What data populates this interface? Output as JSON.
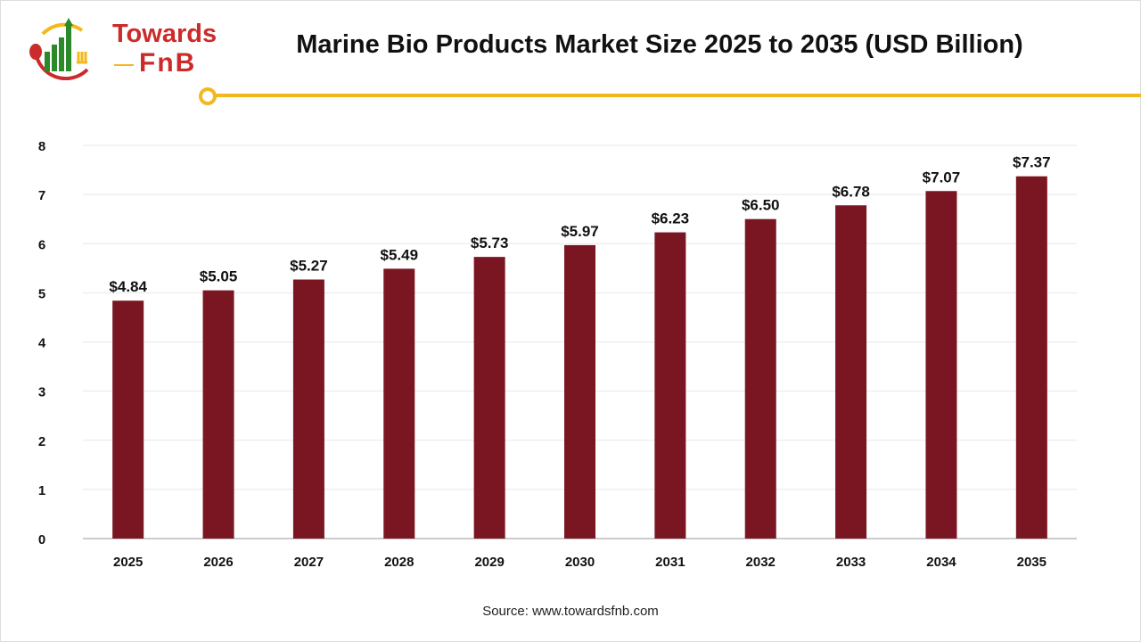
{
  "logo": {
    "line1": "Towards",
    "line2": "FnB"
  },
  "title": "Marine Bio Products Market Size 2025 to 2035 (USD Billion)",
  "source": "Source: www.towardsfnb.com",
  "colors": {
    "bar": "#7a1621",
    "accent": "#f2b81d",
    "brand": "#cc2b2b"
  },
  "chart_data": {
    "type": "bar",
    "title": "Marine Bio Products Market Size 2025 to 2035 (USD Billion)",
    "categories": [
      "2025",
      "2026",
      "2027",
      "2028",
      "2029",
      "2030",
      "2031",
      "2032",
      "2033",
      "2034",
      "2035"
    ],
    "values": [
      4.84,
      5.05,
      5.27,
      5.49,
      5.73,
      5.97,
      6.23,
      6.5,
      6.78,
      7.07,
      7.37
    ],
    "data_labels": [
      "$4.84",
      "$5.05",
      "$5.27",
      "$5.49",
      "$5.73",
      "$5.97",
      "$6.23",
      "$6.50",
      "$6.78",
      "$7.07",
      "$7.37"
    ],
    "yticks": [
      0,
      1,
      2,
      3,
      4,
      5,
      6,
      7,
      8
    ],
    "ylim": [
      0,
      8
    ],
    "xlabel": "",
    "ylabel": "",
    "grid": true,
    "legend": "none"
  }
}
